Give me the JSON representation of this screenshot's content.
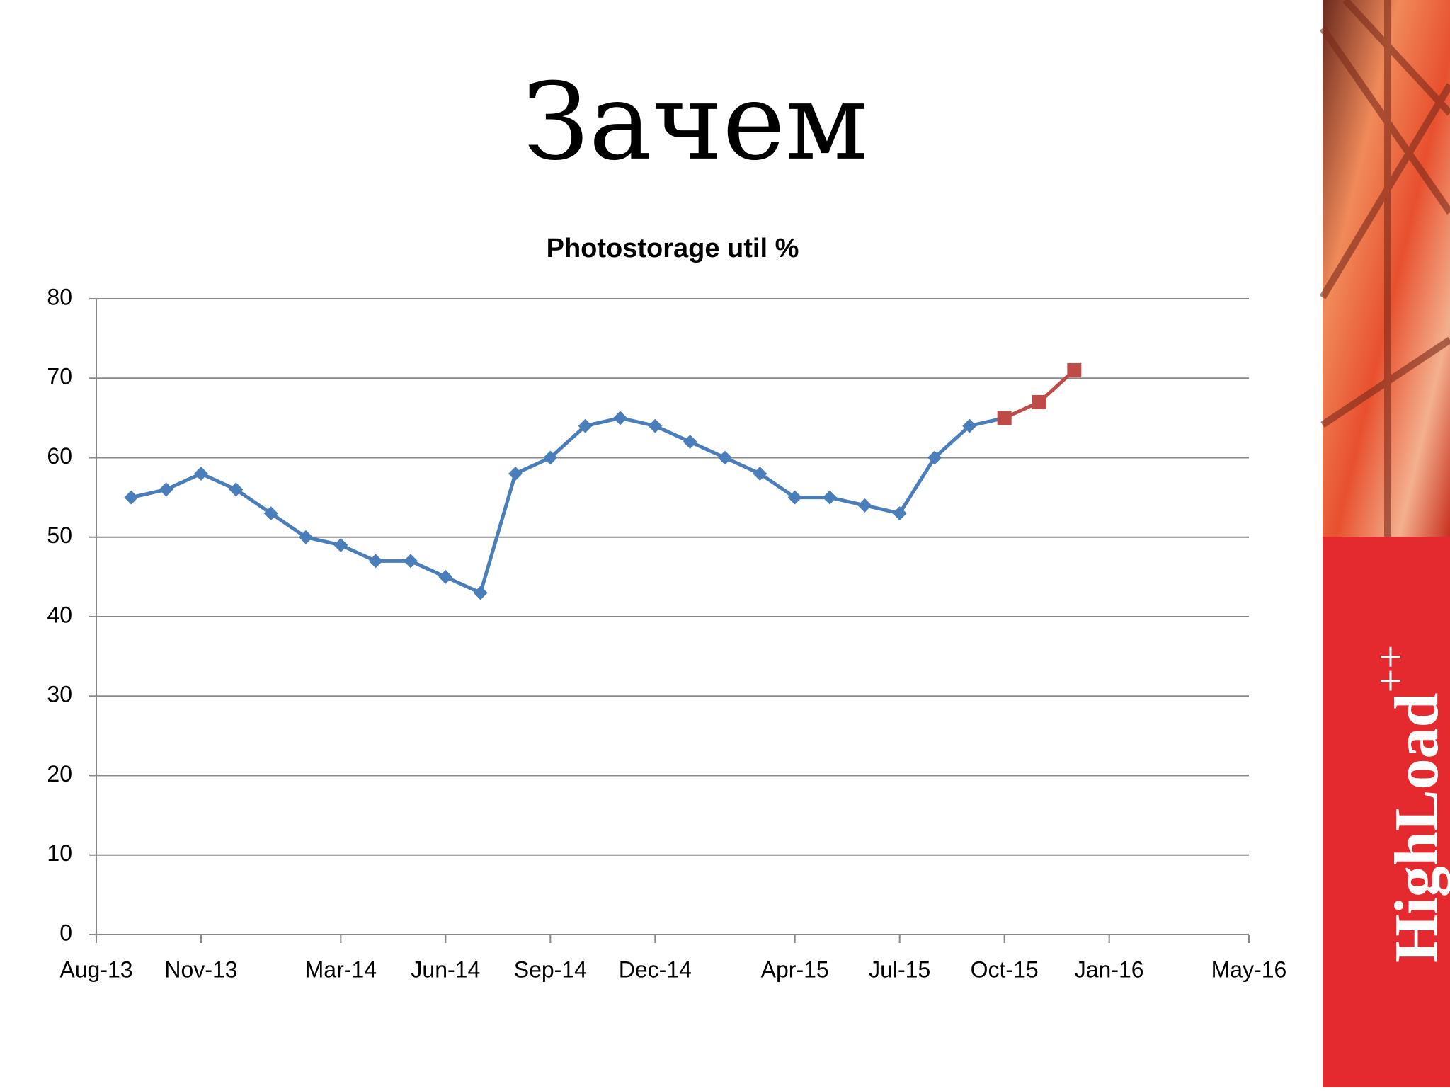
{
  "slide_title": "Зачем",
  "brand": {
    "name": "HighLoad",
    "sup": "++"
  },
  "chart_data": {
    "type": "line",
    "title": "Photostorage util %",
    "xlim": [
      "2013-08",
      "2016-05"
    ],
    "xticks": [
      {
        "value": "2013-08",
        "label": "Aug-13"
      },
      {
        "value": "2013-11",
        "label": "Nov-13"
      },
      {
        "value": "2014-03",
        "label": "Mar-14"
      },
      {
        "value": "2014-06",
        "label": "Jun-14"
      },
      {
        "value": "2014-09",
        "label": "Sep-14"
      },
      {
        "value": "2014-12",
        "label": "Dec-14"
      },
      {
        "value": "2015-04",
        "label": "Apr-15"
      },
      {
        "value": "2015-07",
        "label": "Jul-15"
      },
      {
        "value": "2015-10",
        "label": "Oct-15"
      },
      {
        "value": "2016-01",
        "label": "Jan-16"
      },
      {
        "value": "2016-05",
        "label": "May-16"
      }
    ],
    "ylim": [
      0,
      80
    ],
    "yticks": [
      0,
      10,
      20,
      30,
      40,
      50,
      60,
      70,
      80
    ],
    "grid": true,
    "series": [
      {
        "color": "#4a7ebb",
        "marker": "diamond",
        "x": [
          "2013-09",
          "2013-10",
          "2013-11",
          "2013-12",
          "2014-01",
          "2014-02",
          "2014-03",
          "2014-04",
          "2014-05",
          "2014-06",
          "2014-07",
          "2014-08",
          "2014-09",
          "2014-10",
          "2014-11",
          "2014-12",
          "2015-01",
          "2015-02",
          "2015-03",
          "2015-04",
          "2015-05",
          "2015-06",
          "2015-07",
          "2015-08",
          "2015-09",
          "2015-10"
        ],
        "values": [
          55,
          56,
          58,
          56,
          53,
          50,
          49,
          47,
          47,
          45,
          43,
          58,
          60,
          64,
          65,
          64,
          62,
          60,
          58,
          55,
          55,
          54,
          53,
          60,
          64,
          65
        ]
      },
      {
        "color": "#be4b48",
        "marker": "square",
        "x": [
          "2015-10",
          "2015-11",
          "2015-12"
        ],
        "values": [
          65,
          67,
          71
        ]
      }
    ]
  }
}
